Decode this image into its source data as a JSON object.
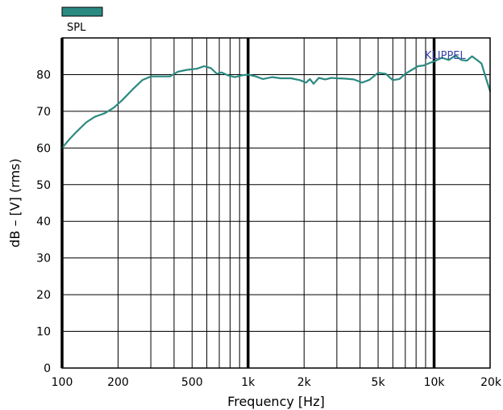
{
  "chart_data": {
    "type": "line",
    "xlabel": "Frequency [Hz]",
    "ylabel": "dB – [V] (rms)",
    "x_scale": "log",
    "xlim": [
      100,
      20000
    ],
    "ylim": [
      0,
      90
    ],
    "x_ticks": [
      100,
      200,
      500,
      1000,
      2000,
      5000,
      10000,
      20000
    ],
    "x_tick_labels": [
      "100",
      "200",
      "500",
      "1k",
      "2k",
      "5k",
      "10k",
      "20k"
    ],
    "y_ticks": [
      0,
      10,
      20,
      30,
      40,
      50,
      60,
      70,
      80
    ],
    "y_tick_labels": [
      "0",
      "10",
      "20",
      "30",
      "40",
      "50",
      "60",
      "70",
      "80"
    ],
    "grid": true,
    "legend": "top-left",
    "series": [
      {
        "name": "SPL",
        "color": "#2b8a82",
        "x": [
          100,
          110,
          120,
          135,
          150,
          170,
          190,
          210,
          240,
          270,
          300,
          340,
          380,
          420,
          470,
          530,
          580,
          630,
          680,
          720,
          780,
          850,
          920,
          1000,
          1100,
          1200,
          1350,
          1500,
          1700,
          1900,
          2050,
          2150,
          2250,
          2400,
          2600,
          2800,
          3000,
          3300,
          3700,
          4100,
          4500,
          5000,
          5500,
          6000,
          6500,
          7000,
          7600,
          8200,
          8800,
          9500,
          10200,
          11000,
          12000,
          13000,
          14000,
          15000,
          16000,
          17000,
          18000,
          19000,
          20000
        ],
        "y": [
          60,
          62.5,
          64.5,
          67,
          68.5,
          69.5,
          71,
          73,
          76,
          78.5,
          79.5,
          79.5,
          79.5,
          80.8,
          81.3,
          81.6,
          82.3,
          81.8,
          80.2,
          80.6,
          79.8,
          79.3,
          79.8,
          80,
          79.5,
          78.8,
          79.3,
          79,
          79,
          78.5,
          77.8,
          78.8,
          77.5,
          79.1,
          78.7,
          79.1,
          79,
          78.9,
          78.7,
          77.8,
          78.6,
          80.5,
          80.2,
          78.5,
          78.8,
          80.2,
          81.3,
          82.3,
          82.5,
          83.2,
          83.8,
          84.6,
          84,
          85.2,
          84,
          83.8,
          85,
          84,
          83,
          79,
          75.5
        ]
      }
    ]
  },
  "legend": {
    "items": [
      {
        "label": "SPL",
        "color": "#2b8a82"
      }
    ]
  },
  "brand_label": "KLIPPEL",
  "brand_color": "#3a44a8"
}
